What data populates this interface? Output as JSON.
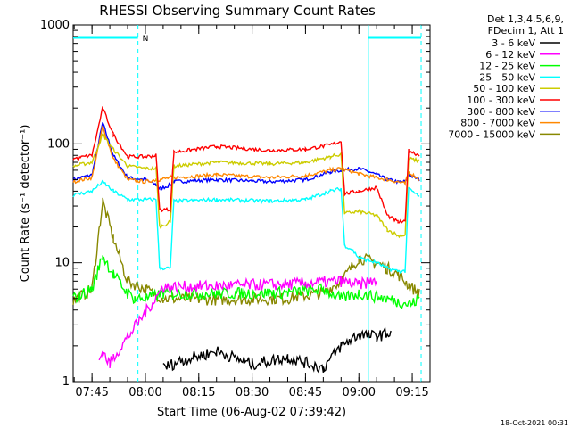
{
  "chart_data": {
    "type": "line",
    "title": "RHESSI Observing Summary Count Rates",
    "xlabel": "Start Time (06-Aug-02 07:39:42)",
    "ylabel": "Count Rate (s⁻¹ detector⁻¹)",
    "yscale": "log",
    "ylim": [
      1,
      1000
    ],
    "xlim": [
      "07:39:42",
      "09:20:00"
    ],
    "y_ticks": [
      "1",
      "10",
      "100",
      "1000"
    ],
    "x_ticks": [
      "07:45",
      "08:00",
      "08:15",
      "08:30",
      "08:45",
      "09:00",
      "09:15"
    ],
    "legend_header": [
      "Det 1,3,4,5,6,9,",
      "FDecim 1, Att 1"
    ],
    "legend_position": "right",
    "footer_date": "18-Oct-2021 00:31",
    "night_periods": [
      {
        "start": "07:39:42",
        "end": "07:57:55"
      },
      {
        "start": "09:02:40",
        "end": "09:17:30"
      }
    ],
    "night_label": "N",
    "data_gaps": [
      {
        "start": "07:57:55",
        "end": "09:02:40"
      }
    ],
    "colors": {
      "night_bar": "#00ffff",
      "gap_line": "#00ffff"
    },
    "series": [
      {
        "name": "3 - 6 keV",
        "color": "#000000",
        "points": [
          [
            "07:39:42",
            null
          ],
          [
            "08:05",
            1.3
          ],
          [
            "08:10",
            1.5
          ],
          [
            "08:20",
            1.8
          ],
          [
            "08:30",
            1.4
          ],
          [
            "08:40",
            1.6
          ],
          [
            "08:50",
            1.3
          ],
          [
            "08:55",
            2.0
          ],
          [
            "09:00",
            2.5
          ],
          [
            "09:05",
            2.4
          ],
          [
            "09:09",
            2.6
          ]
        ]
      },
      {
        "name": "6 - 12 keV",
        "color": "#ff00ff",
        "points": [
          [
            "07:47",
            1.5
          ],
          [
            "07:48",
            1.8
          ],
          [
            "07:50",
            1.4
          ],
          [
            "07:51",
            1.6
          ],
          [
            "08:05",
            6.2
          ],
          [
            "08:20",
            6.4
          ],
          [
            "08:40",
            6.6
          ],
          [
            "08:55",
            7.0
          ],
          [
            "09:00",
            6.5
          ],
          [
            "09:05",
            7.2
          ]
        ]
      },
      {
        "name": "12 - 25 keV",
        "color": "#00ff00",
        "points": [
          [
            "07:39:42",
            5.0
          ],
          [
            "07:45",
            6.0
          ],
          [
            "07:48",
            11.5
          ],
          [
            "07:51",
            8.0
          ],
          [
            "07:55",
            5.5
          ],
          [
            "07:57",
            5.0
          ],
          [
            "08:00",
            5.0
          ],
          [
            "08:05",
            5.5
          ],
          [
            "08:20",
            5.5
          ],
          [
            "08:40",
            5.6
          ],
          [
            "08:50",
            6.0
          ],
          [
            "08:55",
            5.0
          ],
          [
            "09:00",
            5.5
          ],
          [
            "09:08",
            5.0
          ],
          [
            "09:12",
            4.6
          ],
          [
            "09:15",
            4.5
          ],
          [
            "09:17",
            5.0
          ]
        ]
      },
      {
        "name": "25 - 50 keV",
        "color": "#00ffff",
        "points": [
          [
            "07:39:42",
            37
          ],
          [
            "07:45",
            40
          ],
          [
            "07:48",
            48
          ],
          [
            "07:51",
            40
          ],
          [
            "07:55",
            34
          ],
          [
            "08:00",
            34
          ],
          [
            "08:03",
            34
          ],
          [
            "08:04",
            9
          ],
          [
            "08:07",
            9
          ],
          [
            "08:08",
            33
          ],
          [
            "08:20",
            34
          ],
          [
            "08:35",
            33
          ],
          [
            "08:45",
            34
          ],
          [
            "08:52",
            40
          ],
          [
            "08:55",
            42
          ],
          [
            "08:56",
            14
          ],
          [
            "08:58",
            13
          ],
          [
            "09:00",
            11
          ],
          [
            "09:05",
            10
          ],
          [
            "09:08",
            9
          ],
          [
            "09:11",
            8.5
          ],
          [
            "09:13",
            8.5
          ],
          [
            "09:14",
            42
          ],
          [
            "09:17",
            36
          ]
        ]
      },
      {
        "name": "50 - 100 keV",
        "color": "#cccc00",
        "points": [
          [
            "07:39:42",
            65
          ],
          [
            "07:45",
            70
          ],
          [
            "07:48",
            120
          ],
          [
            "07:51",
            90
          ],
          [
            "07:55",
            65
          ],
          [
            "08:00",
            62
          ],
          [
            "08:03",
            62
          ],
          [
            "08:04",
            20
          ],
          [
            "08:07",
            22
          ],
          [
            "08:08",
            65
          ],
          [
            "08:20",
            70
          ],
          [
            "08:35",
            68
          ],
          [
            "08:45",
            70
          ],
          [
            "08:52",
            78
          ],
          [
            "08:55",
            82
          ],
          [
            "08:56",
            26
          ],
          [
            "09:00",
            27
          ],
          [
            "09:05",
            25
          ],
          [
            "09:08",
            19
          ],
          [
            "09:11",
            17
          ],
          [
            "09:13",
            17
          ],
          [
            "09:14",
            75
          ],
          [
            "09:17",
            72
          ]
        ]
      },
      {
        "name": "100 - 300 keV",
        "color": "#ff0000",
        "points": [
          [
            "07:39:42",
            75
          ],
          [
            "07:45",
            80
          ],
          [
            "07:48",
            200
          ],
          [
            "07:51",
            120
          ],
          [
            "07:55",
            78
          ],
          [
            "08:00",
            78
          ],
          [
            "08:03",
            80
          ],
          [
            "08:04",
            28
          ],
          [
            "08:07",
            28
          ],
          [
            "08:08",
            85
          ],
          [
            "08:20",
            95
          ],
          [
            "08:35",
            88
          ],
          [
            "08:45",
            90
          ],
          [
            "08:52",
            98
          ],
          [
            "08:55",
            105
          ],
          [
            "08:56",
            38
          ],
          [
            "09:00",
            40
          ],
          [
            "09:05",
            43
          ],
          [
            "09:08",
            25
          ],
          [
            "09:11",
            22
          ],
          [
            "09:13",
            22
          ],
          [
            "09:14",
            88
          ],
          [
            "09:17",
            80
          ]
        ]
      },
      {
        "name": "300 - 800 keV",
        "color": "#0000ff",
        "points": [
          [
            "07:39:42",
            50
          ],
          [
            "07:45",
            55
          ],
          [
            "07:48",
            150
          ],
          [
            "07:51",
            80
          ],
          [
            "07:55",
            52
          ],
          [
            "08:00",
            50
          ],
          [
            "08:03",
            45
          ],
          [
            "08:04",
            42
          ],
          [
            "08:07",
            45
          ],
          [
            "08:08",
            48
          ],
          [
            "08:20",
            50
          ],
          [
            "08:35",
            48
          ],
          [
            "08:45",
            50
          ],
          [
            "08:52",
            58
          ],
          [
            "08:55",
            60
          ],
          [
            "09:00",
            62
          ],
          [
            "09:03",
            58
          ],
          [
            "09:05",
            55
          ],
          [
            "09:08",
            50
          ],
          [
            "09:11",
            48
          ],
          [
            "09:13",
            48
          ],
          [
            "09:14",
            55
          ],
          [
            "09:17",
            50
          ]
        ]
      },
      {
        "name": "800 - 7000 keV",
        "color": "#ff8800",
        "points": [
          [
            "07:39:42",
            48
          ],
          [
            "07:45",
            52
          ],
          [
            "07:48",
            140
          ],
          [
            "07:51",
            75
          ],
          [
            "07:55",
            50
          ],
          [
            "08:00",
            48
          ],
          [
            "08:03",
            50
          ],
          [
            "08:04",
            50
          ],
          [
            "08:07",
            52
          ],
          [
            "08:08",
            52
          ],
          [
            "08:20",
            55
          ],
          [
            "08:35",
            52
          ],
          [
            "08:45",
            54
          ],
          [
            "08:52",
            60
          ],
          [
            "08:55",
            62
          ],
          [
            "09:00",
            56
          ],
          [
            "09:05",
            52
          ],
          [
            "09:08",
            50
          ],
          [
            "09:11",
            48
          ],
          [
            "09:13",
            46
          ],
          [
            "09:14",
            58
          ],
          [
            "09:17",
            50
          ]
        ]
      },
      {
        "name": "7000 - 15000 keV",
        "color": "#888800",
        "points": [
          [
            "07:39:42",
            4.8
          ],
          [
            "07:45",
            6.0
          ],
          [
            "07:48",
            33
          ],
          [
            "07:51",
            16
          ],
          [
            "07:55",
            7.0
          ],
          [
            "08:00",
            6.0
          ],
          [
            "08:05",
            5.0
          ],
          [
            "08:20",
            4.9
          ],
          [
            "08:40",
            5.0
          ],
          [
            "08:50",
            5.6
          ],
          [
            "08:55",
            7.0
          ],
          [
            "09:00",
            11
          ],
          [
            "09:05",
            10
          ],
          [
            "09:08",
            9
          ],
          [
            "09:11",
            8
          ],
          [
            "09:14",
            6.5
          ],
          [
            "09:17",
            5.5
          ]
        ]
      }
    ]
  }
}
